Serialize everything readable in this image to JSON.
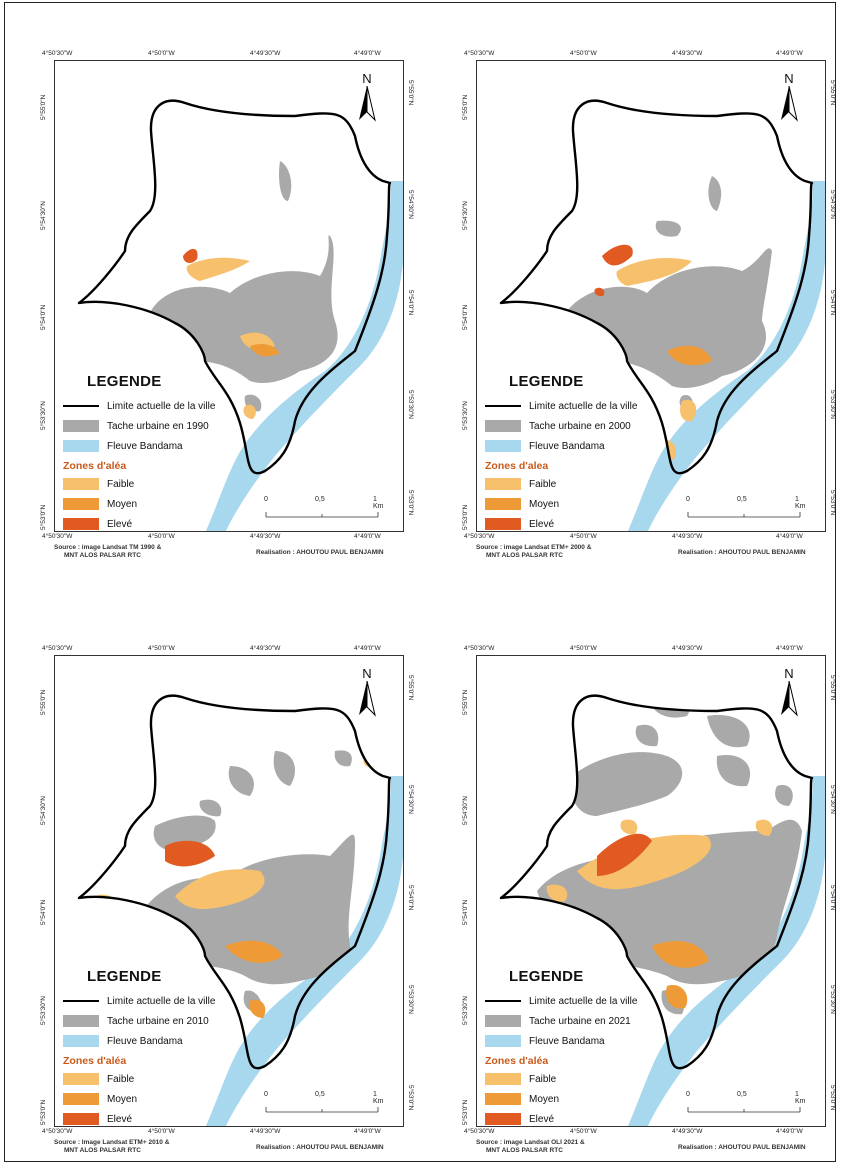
{
  "colors": {
    "urban": "#a9a9a9",
    "river": "#a8d8ee",
    "faible": "#f6c06c",
    "moyen": "#ee9a37",
    "eleve": "#e05a22",
    "limit": "#000000"
  },
  "common": {
    "legend_title": "LEGENDE",
    "limite": "Limite actuelle de la ville",
    "fleuve": "Fleuve Bandama",
    "zones_title": "Zones d'aléa",
    "faible": "Faible",
    "moyen": "Moyen",
    "eleve": "Elevé",
    "north": "N",
    "scale_0": "0",
    "scale_mid": "0,5",
    "scale_end": "1 Km"
  },
  "maps": [
    {
      "year": 1990,
      "top_ticks": [
        "4°50'30\"W",
        "4°50'0\"W",
        "4°49'30\"W",
        "4°49'0\"W"
      ],
      "bottom_ticks": [
        "4°50'30\"W",
        "4°50'0\"W",
        "4°49'30\"W",
        "4°49'0\"W"
      ],
      "left_ticks": [
        "5°55'0\"N",
        "5°54'30\"N",
        "5°54'0\"N",
        "5°53'30\"N",
        "5°53'0\"N"
      ],
      "right_ticks": [
        "5°55'0\"N",
        "5°54'30\"N",
        "5°54'0\"N",
        "5°53'30\"N",
        "5°53'0\"N"
      ],
      "tache": "Tache urbaine en 1990",
      "zones_title": "Zones d'aléa",
      "source": [
        "Source : image Landsat TM 1990 &",
        "MNT ALOS PALSAR RTC"
      ],
      "credit": "Realisation : AHOUTOU PAUL BENJAMIN"
    },
    {
      "year": 2000,
      "top_ticks": [
        "4°50'30\"W",
        "4°50'0\"W",
        "4°49'30\"W",
        "4°49'0\"W"
      ],
      "bottom_ticks": [
        "4°50'30\"W",
        "4°50'0\"W",
        "4°49'30\"W",
        "4°49'0\"W"
      ],
      "left_ticks": [
        "5°55'0\"N",
        "5°54'30\"N",
        "5°54'0\"N",
        "5°53'30\"N",
        "5°53'0\"N"
      ],
      "right_ticks": [
        "5°55'0\"N",
        "5°54'30\"N",
        "5°54'0\"N",
        "5°53'30\"N",
        "5°53'0\"N"
      ],
      "tache": "Tache urbaine en 2000",
      "zones_title": "Zones d'alea",
      "source": [
        "Source : image Landsat ETM+ 2000 &",
        "MNT ALOS PALSAR RTC"
      ],
      "credit": "Realisation : AHOUTOU PAUL BENJAMIN"
    },
    {
      "year": 2010,
      "top_ticks": [
        "4°50'30\"W",
        "4°50'0\"W",
        "4°49'30\"W",
        "4°49'0\"W"
      ],
      "bottom_ticks": [
        "4°50'30\"W",
        "4°50'0\"W",
        "4°49'30\"W",
        "4°49'0\"W"
      ],
      "left_ticks": [
        "5°55'0\"N",
        "5°54'30\"N",
        "5°54'0\"N",
        "5°53'30\"N",
        "5°53'0\"N"
      ],
      "right_ticks": [
        "5°55'0\"N",
        "5°54'30\"N",
        "5°54'0\"N",
        "5°53'30\"N",
        "5°53'0\"N"
      ],
      "tache": "Tache urbaine en 2010",
      "zones_title": "Zones d'aléa",
      "source": [
        "Source : Image Landsat ETM+ 2010 &",
        "MNT ALOS PALSAR RTC"
      ],
      "credit": "Realisation : AHOUTOU PAUL BENJAMIN"
    },
    {
      "year": 2021,
      "top_ticks": [
        "4°50'30\"W",
        "4°50'0\"W",
        "4°49'30\"W",
        "4°49'0\"W"
      ],
      "bottom_ticks": [
        "4°50'30\"W",
        "4°50'0\"W",
        "4°49'30\"W",
        "4°49'0\"W"
      ],
      "left_ticks": [
        "5°55'0\"N",
        "5°54'30\"N",
        "5°54'0\"N",
        "5°53'30\"N",
        "5°53'0\"N"
      ],
      "right_ticks": [
        "5°55'0\"N",
        "5°54'30\"N",
        "5°54'0\"N",
        "5°53'30\"N",
        "5°53'0\"N"
      ],
      "tache": "Tache urbaine en 2021",
      "zones_title": "Zones d'aléa",
      "source": [
        "Source : image Landsat OLI 2021 &",
        "MNT ALOS PALSAR RTC"
      ],
      "credit": "Realisation : AHOUTOU PAUL BENJAMIN"
    }
  ]
}
